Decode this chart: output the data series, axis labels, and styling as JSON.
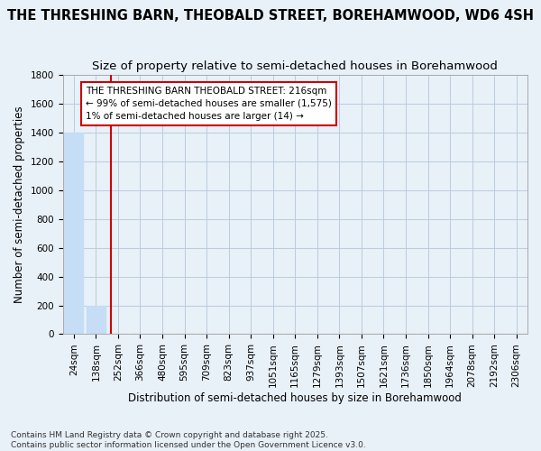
{
  "title": "THE THRESHING BARN, THEOBALD STREET, BOREHAMWOOD, WD6 4SH",
  "subtitle": "Size of property relative to semi-detached houses in Borehamwood",
  "xlabel": "Distribution of semi-detached houses by size in Borehamwood",
  "ylabel": "Number of semi-detached properties",
  "categories": [
    "24sqm",
    "138sqm",
    "252sqm",
    "366sqm",
    "480sqm",
    "595sqm",
    "709sqm",
    "823sqm",
    "937sqm",
    "1051sqm",
    "1165sqm",
    "1279sqm",
    "1393sqm",
    "1507sqm",
    "1621sqm",
    "1736sqm",
    "1850sqm",
    "1964sqm",
    "2078sqm",
    "2192sqm",
    "2306sqm"
  ],
  "bar_heights": [
    1400,
    200,
    0,
    0,
    0,
    0,
    0,
    0,
    0,
    0,
    0,
    0,
    0,
    0,
    0,
    0,
    0,
    0,
    0,
    0,
    0
  ],
  "bar_color": "#c5ddf5",
  "grid_color": "#bbccdd",
  "background_color": "#e8f0f8",
  "plot_bg_color": "#e8f0f8",
  "red_line_x": 1.68,
  "property_size_label": "THE THRESHING BARN THEOBALD STREET: 216sqm",
  "annotation_line1": "← 99% of semi-detached houses are smaller (1,575)",
  "annotation_line2": "1% of semi-detached houses are larger (14) →",
  "red_line_color": "#cc0000",
  "annotation_box_facecolor": "#ffffff",
  "annotation_border_color": "#cc0000",
  "ylim": [
    0,
    1800
  ],
  "yticks": [
    0,
    200,
    400,
    600,
    800,
    1000,
    1200,
    1400,
    1600,
    1800
  ],
  "footnote1": "Contains HM Land Registry data © Crown copyright and database right 2025.",
  "footnote2": "Contains public sector information licensed under the Open Government Licence v3.0.",
  "title_fontsize": 10.5,
  "subtitle_fontsize": 9.5,
  "axis_label_fontsize": 8.5,
  "tick_fontsize": 7.5,
  "annotation_fontsize": 7.5,
  "footnote_fontsize": 6.5
}
